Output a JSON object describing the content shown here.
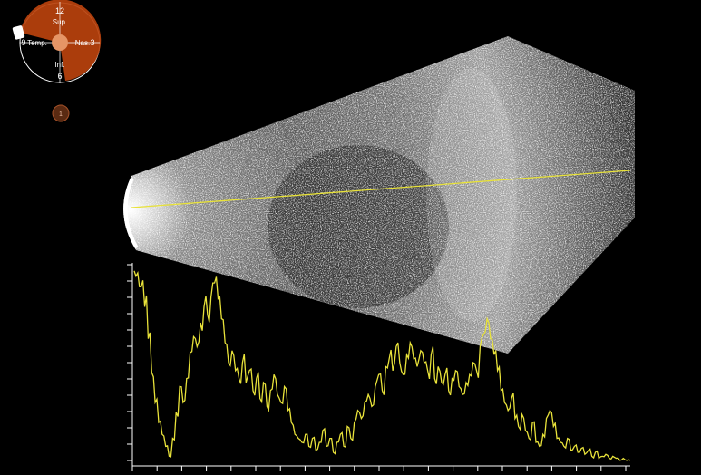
{
  "clock": {
    "hour_12": "12",
    "hour_6": "6",
    "hour_9": "9",
    "hour_3": "3",
    "label_sup": "Sup.",
    "label_temp": "Temp.",
    "label_nas": "Nas.",
    "label_inf": "Inf."
  },
  "probe": {
    "badge": "1"
  },
  "colors": {
    "background": "#000000",
    "probe_sector": "#b8420d",
    "probe_sector_edge": "#d9622b",
    "scan_line": "#e8e23a",
    "a_scan_trace": "#e8e23a",
    "axis": "#ffffff"
  },
  "icons": {
    "clock": "eye-clock-orientation-icon",
    "probe": "probe-marker-icon"
  },
  "a_scan": {
    "amplitudes": [
      0.96,
      0.95,
      0.88,
      0.78,
      0.62,
      0.45,
      0.3,
      0.2,
      0.14,
      0.08,
      0.03,
      0.12,
      0.25,
      0.38,
      0.3,
      0.42,
      0.55,
      0.63,
      0.58,
      0.7,
      0.78,
      0.74,
      0.83,
      0.9,
      0.82,
      0.72,
      0.6,
      0.5,
      0.56,
      0.46,
      0.42,
      0.5,
      0.4,
      0.46,
      0.36,
      0.42,
      0.32,
      0.4,
      0.28,
      0.36,
      0.44,
      0.34,
      0.3,
      0.38,
      0.26,
      0.2,
      0.14,
      0.12,
      0.1,
      0.14,
      0.08,
      0.12,
      0.06,
      0.1,
      0.16,
      0.08,
      0.12,
      0.05,
      0.1,
      0.14,
      0.08,
      0.18,
      0.12,
      0.2,
      0.26,
      0.22,
      0.3,
      0.34,
      0.28,
      0.38,
      0.44,
      0.36,
      0.48,
      0.52,
      0.46,
      0.58,
      0.5,
      0.44,
      0.54,
      0.6,
      0.52,
      0.48,
      0.56,
      0.5,
      0.46,
      0.54,
      0.42,
      0.48,
      0.4,
      0.44,
      0.36,
      0.42,
      0.46,
      0.38,
      0.34,
      0.4,
      0.44,
      0.5,
      0.46,
      0.58,
      0.64,
      0.72,
      0.62,
      0.54,
      0.46,
      0.36,
      0.3,
      0.26,
      0.32,
      0.22,
      0.18,
      0.24,
      0.16,
      0.12,
      0.2,
      0.1,
      0.08,
      0.14,
      0.22,
      0.26,
      0.18,
      0.12,
      0.1,
      0.08,
      0.12,
      0.06,
      0.08,
      0.05,
      0.07,
      0.04,
      0.06,
      0.03,
      0.05,
      0.02,
      0.03,
      0.04,
      0.02,
      0.03,
      0.02,
      0.01,
      0.02,
      0.01,
      0.01
    ]
  }
}
